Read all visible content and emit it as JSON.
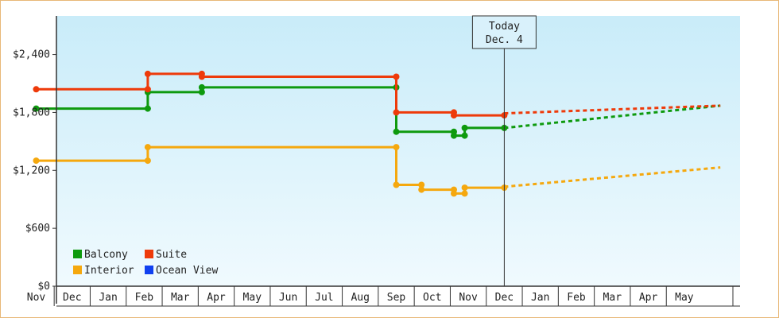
{
  "chart_data": {
    "type": "line",
    "title": "",
    "xlabel": "",
    "ylabel": "",
    "ylim": [
      0,
      2800
    ],
    "y_ticks": [
      0,
      600,
      1200,
      1800,
      2400
    ],
    "y_tick_labels": [
      "$0",
      "$600",
      "$1,200",
      "$1,800",
      "$2,400"
    ],
    "month_labels": [
      "Nov",
      "Dec",
      "Jan",
      "Feb",
      "Mar",
      "Apr",
      "May",
      "Jun",
      "Jul",
      "Aug",
      "Sep",
      "Oct",
      "Nov",
      "Dec",
      "Jan",
      "Feb",
      "Mar",
      "Apr",
      "May"
    ],
    "grid": false,
    "legend_position": "bottom-left",
    "today_marker": {
      "line1": "Today",
      "line2": "Dec. 4",
      "month_index": 13
    },
    "colors": {
      "plot_bg_top": "#c9ecf9",
      "plot_bg_bottom": "#f0fafe",
      "border": "#e8b878"
    },
    "series": [
      {
        "name": "Balcony",
        "color": "#0e9a0e",
        "step_points": [
          [
            0,
            1840
          ],
          [
            3.1,
            1840
          ],
          [
            3.1,
            2010
          ],
          [
            4.6,
            2010
          ],
          [
            4.6,
            2060
          ],
          [
            10.0,
            2060
          ],
          [
            10.0,
            1600
          ],
          [
            11.6,
            1600
          ],
          [
            11.6,
            1560
          ],
          [
            11.9,
            1560
          ],
          [
            11.9,
            1640
          ],
          [
            13.0,
            1640
          ]
        ],
        "markers": [
          [
            0,
            1840
          ],
          [
            3.1,
            1840
          ],
          [
            3.1,
            2010
          ],
          [
            4.6,
            2010
          ],
          [
            4.6,
            2060
          ],
          [
            10.0,
            2060
          ],
          [
            10.0,
            1600
          ],
          [
            11.6,
            1600
          ],
          [
            11.6,
            1560
          ],
          [
            11.9,
            1560
          ],
          [
            11.9,
            1640
          ],
          [
            13.0,
            1640
          ]
        ],
        "forecast": [
          [
            13.0,
            1640
          ],
          [
            19.0,
            1870
          ]
        ]
      },
      {
        "name": "Suite",
        "color": "#ee3a0a",
        "step_points": [
          [
            0,
            2040
          ],
          [
            3.1,
            2040
          ],
          [
            3.1,
            2200
          ],
          [
            4.6,
            2200
          ],
          [
            4.6,
            2170
          ],
          [
            10.0,
            2170
          ],
          [
            10.0,
            1800
          ],
          [
            11.6,
            1800
          ],
          [
            11.6,
            1770
          ],
          [
            13.0,
            1770
          ]
        ],
        "markers": [
          [
            0,
            2040
          ],
          [
            3.1,
            2040
          ],
          [
            3.1,
            2200
          ],
          [
            4.6,
            2200
          ],
          [
            4.6,
            2170
          ],
          [
            10.0,
            2170
          ],
          [
            10.0,
            1800
          ],
          [
            11.6,
            1800
          ],
          [
            11.6,
            1770
          ],
          [
            13.0,
            1770
          ]
        ],
        "forecast": [
          [
            13.0,
            1790
          ],
          [
            19.0,
            1870
          ]
        ]
      },
      {
        "name": "Interior",
        "color": "#f5a80e",
        "step_points": [
          [
            0,
            1300
          ],
          [
            3.1,
            1300
          ],
          [
            3.1,
            1440
          ],
          [
            10.0,
            1440
          ],
          [
            10.0,
            1050
          ],
          [
            10.7,
            1050
          ],
          [
            10.7,
            1000
          ],
          [
            11.6,
            1000
          ],
          [
            11.6,
            960
          ],
          [
            11.9,
            960
          ],
          [
            11.9,
            1020
          ],
          [
            13.0,
            1020
          ]
        ],
        "markers": [
          [
            0,
            1300
          ],
          [
            3.1,
            1300
          ],
          [
            3.1,
            1440
          ],
          [
            10.0,
            1440
          ],
          [
            10.0,
            1050
          ],
          [
            10.7,
            1050
          ],
          [
            10.7,
            1000
          ],
          [
            11.6,
            1000
          ],
          [
            11.6,
            960
          ],
          [
            11.9,
            960
          ],
          [
            11.9,
            1020
          ],
          [
            13.0,
            1020
          ]
        ],
        "forecast": [
          [
            13.0,
            1030
          ],
          [
            19.0,
            1230
          ]
        ]
      },
      {
        "name": "Ocean View",
        "color": "#1040f0",
        "step_points": [],
        "markers": [],
        "forecast": []
      }
    ]
  }
}
